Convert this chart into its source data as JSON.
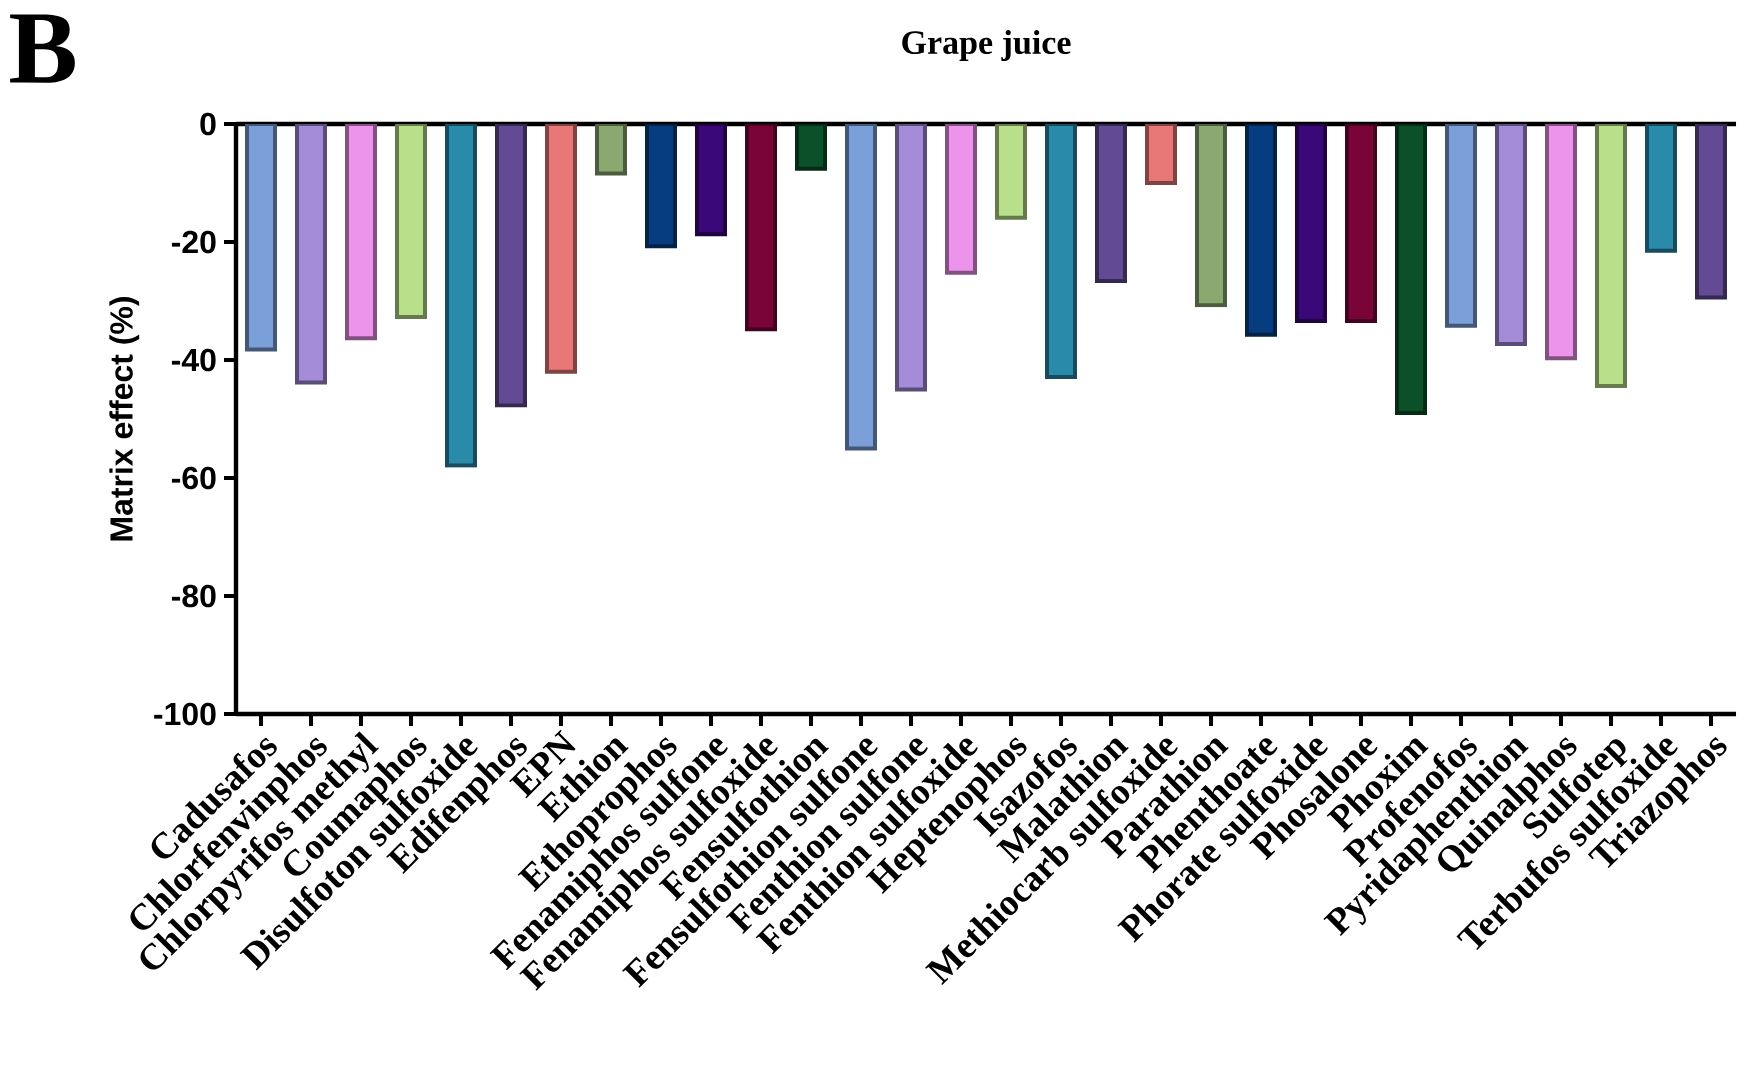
{
  "chart_data": {
    "type": "bar",
    "title": "Grape juice",
    "ylabel": "Matrix effect (%)",
    "annotations": [
      "B"
    ],
    "categories": [
      "Cadusafos",
      "Chlorfenvinphos",
      "Chlorpyrifos methyl",
      "Coumaphos",
      "Disulfoton sulfoxide",
      "Edifenphos",
      "EPN",
      "Ethion",
      "Ethoprophos",
      "Fenamiphos sulfone",
      "Fenamiphos sulfoxide",
      "Fensulfothion",
      "Fensulfothion sulfone",
      "Fenthion sulfone",
      "Fenthion sulfoxide",
      "Heptenophos",
      "Isazofos",
      "Malathion",
      "Methiocarb sulfoxide",
      "Parathion",
      "Phenthoate",
      "Phorate sulfoxide",
      "Phosalone",
      "Phoxim",
      "Profenofos",
      "Pyridaphenthion",
      "Quinalphos",
      "Sulfotep",
      "Terbufos sulfoxide",
      "Triazophos"
    ],
    "values": [
      -38.2,
      -43.8,
      -36.3,
      -32.7,
      -57.9,
      -47.7,
      -42,
      -8.4,
      -20.7,
      -18.7,
      -34.8,
      -7.6,
      -55,
      -45,
      -25.2,
      -15.9,
      -42.9,
      -26.6,
      -10,
      -30.7,
      -35.7,
      -33.4,
      -33.4,
      -49,
      -34.2,
      -37.3,
      -39.7,
      -44.4,
      -21.5,
      -29.4
    ],
    "colors": [
      "#7b9fd8",
      "#a48cd8",
      "#ec94ec",
      "#b8e08a",
      "#2a8aaa",
      "#634a94",
      "#e87878",
      "#8aa870",
      "#063d80",
      "#3a0878",
      "#7a0438",
      "#0a5028",
      "#7b9fd8",
      "#a48cd8",
      "#ec94ec",
      "#b8e08a",
      "#2a8aaa",
      "#634a94",
      "#e87878",
      "#8aa870",
      "#063d80",
      "#3a0878",
      "#7a0438",
      "#0a5028",
      "#7b9fd8",
      "#a48cd8",
      "#ec94ec",
      "#b8e08a",
      "#2a8aaa",
      "#634a94"
    ],
    "ylim": [
      -100,
      0
    ],
    "yticks": [
      -100,
      -80,
      -60,
      -40,
      -20,
      0
    ],
    "grid": false
  }
}
